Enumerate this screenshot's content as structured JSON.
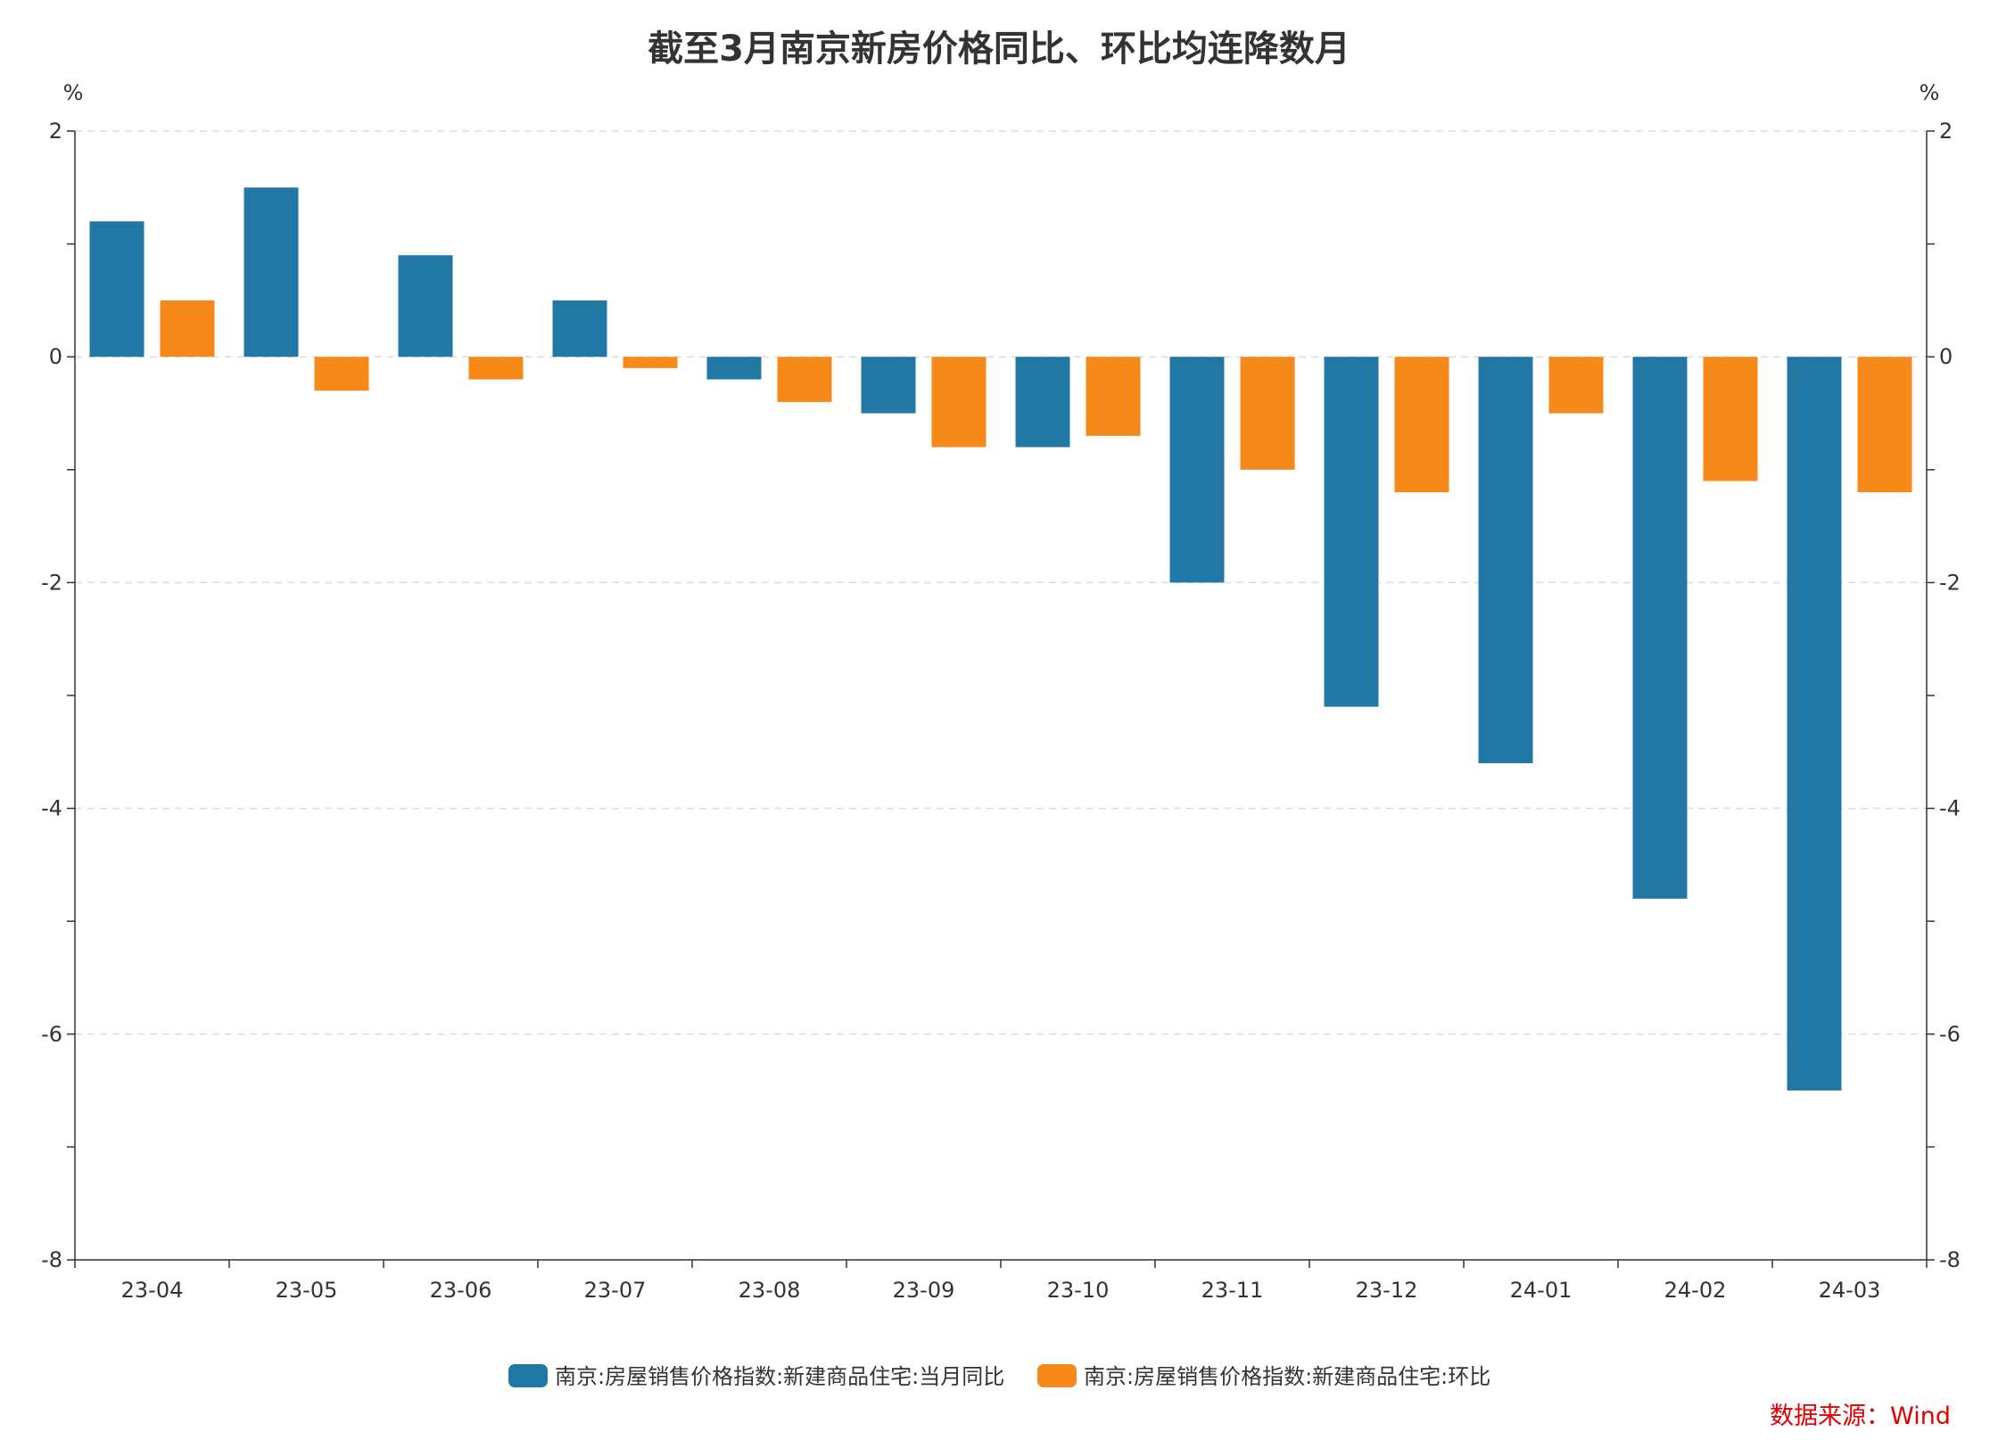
{
  "title": "截至3月南京新房价格同比、环比均连降数月",
  "source": "数据来源：Wind",
  "colors": {
    "yoy": "#2178a4",
    "mom": "#f5891a"
  },
  "chart_data": {
    "type": "bar",
    "title": "截至3月南京新房价格同比、环比均连降数月",
    "y_unit_left": "%",
    "y_unit_right": "%",
    "ylim": [
      -8,
      2
    ],
    "y_major_ticks": [
      2,
      0,
      -2,
      -4,
      -6,
      -8
    ],
    "grid": "horizontal dashed",
    "legend_position": "bottom-center",
    "categories": [
      "23-04",
      "23-05",
      "23-06",
      "23-07",
      "23-08",
      "23-09",
      "23-10",
      "23-11",
      "23-12",
      "24-01",
      "24-02",
      "24-03"
    ],
    "series": [
      {
        "name": "南京:房屋销售价格指数:新建商品住宅:当月同比",
        "color": "#2178a4",
        "values": [
          1.2,
          1.5,
          0.9,
          0.5,
          -0.2,
          -0.5,
          -0.8,
          -2.0,
          -3.1,
          -3.6,
          -4.8,
          -6.5
        ]
      },
      {
        "name": "南京:房屋销售价格指数:新建商品住宅:环比",
        "color": "#f5891a",
        "values": [
          0.5,
          -0.3,
          -0.2,
          -0.1,
          -0.4,
          -0.8,
          -0.7,
          -1.0,
          -1.2,
          -0.5,
          -1.1,
          -1.2
        ]
      }
    ]
  }
}
